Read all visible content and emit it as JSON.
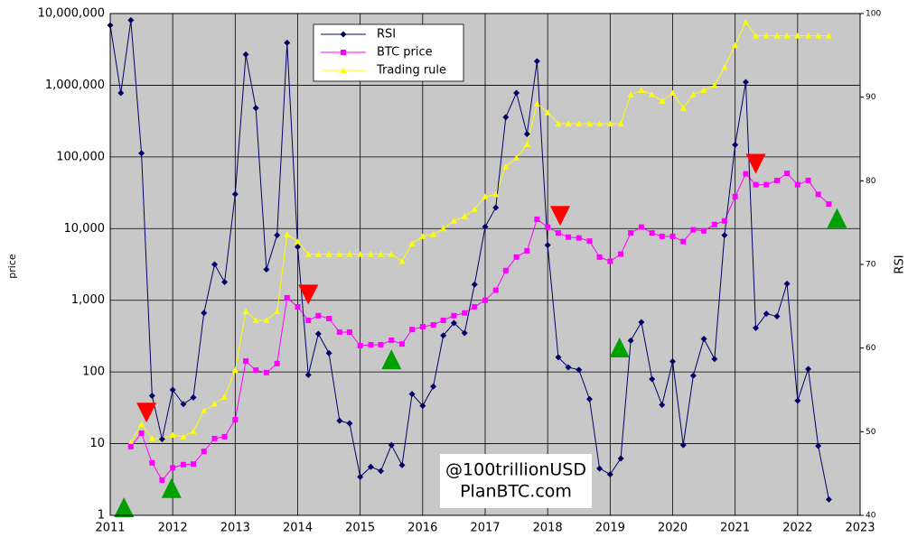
{
  "chart_data": {
    "type": "line",
    "ylabel": "price",
    "y2label": "RSI",
    "ylog": true,
    "grid": true,
    "legend": "top-center",
    "annotation": [
      "@100trillionUSD",
      "PlanBTC.com"
    ],
    "xlim": [
      2011,
      2023
    ],
    "xticks": [
      2011,
      2012,
      2013,
      2014,
      2015,
      2016,
      2017,
      2018,
      2019,
      2020,
      2021,
      2022,
      2023
    ],
    "ylim": [
      1,
      10000000
    ],
    "yticks": [
      1,
      10,
      100,
      {
        "value": 1000,
        "label": "1,000"
      },
      {
        "value": 10000,
        "label": "10,000"
      },
      {
        "value": 100000,
        "label": "100,000"
      },
      {
        "value": 1000000,
        "label": "1,000,000"
      },
      {
        "value": 10000000,
        "label": "10,000,000"
      }
    ],
    "y2lim": [
      40,
      100
    ],
    "y2ticks": [
      40,
      50,
      60,
      70,
      80,
      90,
      100
    ],
    "x": [
      2011,
      2011.17,
      2011.33,
      2011.5,
      2011.67,
      2011.83,
      2012,
      2012.17,
      2012.33,
      2012.5,
      2012.67,
      2012.83,
      2013,
      2013.17,
      2013.33,
      2013.5,
      2013.67,
      2013.83,
      2014,
      2014.17,
      2014.33,
      2014.5,
      2014.67,
      2014.83,
      2015,
      2015.17,
      2015.33,
      2015.5,
      2015.67,
      2015.83,
      2016,
      2016.17,
      2016.33,
      2016.5,
      2016.67,
      2016.83,
      2017,
      2017.17,
      2017.33,
      2017.5,
      2017.67,
      2017.83,
      2018,
      2018.17,
      2018.33,
      2018.5,
      2018.67,
      2018.83,
      2019,
      2019.17,
      2019.33,
      2019.5,
      2019.67,
      2019.83,
      2020,
      2020.17,
      2020.33,
      2020.5,
      2020.67,
      2020.83,
      2021,
      2021.17,
      2021.33,
      2021.5,
      2021.67,
      2021.83,
      2022,
      2022.17,
      2022.33,
      2022.5
    ],
    "series": [
      {
        "name": "RSI",
        "color": "#000066",
        "marker": "diamond",
        "axis": "y2",
        "values": [
          98.6,
          90.5,
          99.2,
          83.3,
          54.3,
          49.1,
          55.0,
          53.3,
          54.1,
          64.2,
          70.0,
          67.9,
          78.4,
          95.1,
          88.7,
          69.4,
          73.5,
          96.5,
          72.1,
          56.8,
          61.7,
          59.4,
          51.3,
          51.0,
          44.6,
          45.8,
          45.3,
          48.4,
          46.0,
          54.5,
          53.1,
          55.4,
          61.5,
          63.0,
          61.8,
          67.6,
          74.5,
          76.8,
          87.6,
          90.5,
          85.6,
          94.3,
          72.3,
          58.9,
          57.7,
          57.4,
          53.9,
          45.6,
          44.9,
          46.8,
          60.9,
          63.1,
          56.3,
          53.2,
          58.4,
          48.4,
          56.7,
          61.1,
          58.7,
          73.5,
          84.3,
          91.8,
          62.4,
          64.1,
          63.8,
          67.7,
          53.7,
          57.5,
          48.3,
          41.9
        ]
      },
      {
        "name": "BTC price",
        "color": "#ff00ff",
        "marker": "square",
        "values": [
          null,
          null,
          9.1,
          14,
          5.4,
          3.1,
          4.6,
          5.1,
          5.2,
          7.8,
          11.8,
          12.5,
          21.6,
          142,
          106,
          98,
          131,
          1084,
          811,
          525,
          610,
          556,
          360,
          360,
          233,
          240,
          240,
          277,
          246,
          391,
          428,
          454,
          525,
          610,
          665,
          811,
          1000,
          1380,
          2600,
          4000,
          4900,
          13500,
          10500,
          8700,
          7600,
          7400,
          6700,
          4000,
          3500,
          4400,
          8700,
          10500,
          8700,
          7800,
          7800,
          6600,
          9600,
          9300,
          11400,
          12800,
          28000,
          58000,
          41000,
          41000,
          47000,
          59000,
          41000,
          47000,
          30000,
          22000
        ]
      },
      {
        "name": "Trading rule",
        "color": "#ffff00",
        "marker": "triangle",
        "values": [
          null,
          null,
          10.4,
          18.7,
          11.8,
          11.8,
          13.2,
          12.5,
          14.8,
          29,
          36,
          45,
          106,
          700,
          525,
          525,
          700,
          8300,
          6600,
          4400,
          4400,
          4400,
          4400,
          4400,
          4400,
          4400,
          4400,
          4400,
          3500,
          6200,
          7800,
          8300,
          10000,
          12800,
          14800,
          18600,
          28000,
          30000,
          73000,
          97000,
          150000,
          550000,
          415000,
          290000,
          290000,
          290000,
          290000,
          290000,
          290000,
          290000,
          740000,
          850000,
          740000,
          600000,
          780000,
          480000,
          740000,
          850000,
          1000000,
          1780000,
          3600000,
          7600000,
          4900000,
          4900000,
          4900000,
          4900000,
          4900000,
          4900000,
          4900000,
          4900000
        ]
      }
    ],
    "signals": {
      "sell": {
        "color": "#ff0000",
        "x": [
          2011.58,
          2014.17,
          2018.2,
          2021.33
        ],
        "values": [
          27,
          1200,
          15000,
          80000
        ]
      },
      "buy": {
        "color": "#00a000",
        "x": [
          2011.22,
          2011.98,
          2015.5,
          2019.15,
          2022.63
        ],
        "values": [
          1.3,
          2.4,
          150,
          220,
          14000
        ]
      }
    }
  }
}
